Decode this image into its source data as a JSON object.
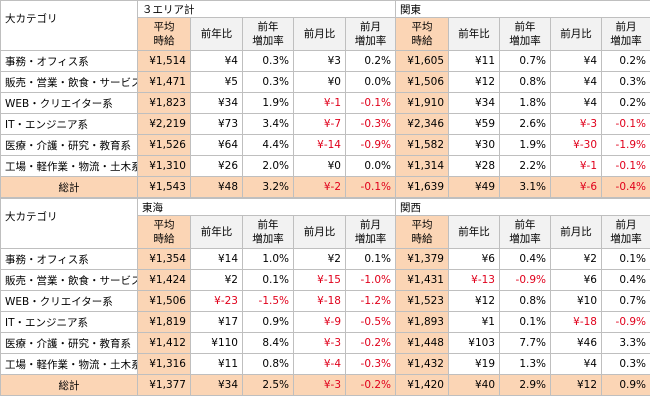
{
  "blocks": [
    {
      "category_header": "大カテゴリ",
      "regions": [
        "３エリア計",
        "関東"
      ],
      "columns": [
        "平均\n時給",
        "前年比",
        "前年\n増加率",
        "前月比",
        "前月\n増加率"
      ],
      "rows": [
        {
          "category": "事務・オフィス系",
          "cells": [
            [
              "¥1,514",
              "¥4",
              "0.3%",
              "¥3",
              "0.2%"
            ],
            [
              "¥1,605",
              "¥11",
              "0.7%",
              "¥4",
              "0.2%"
            ]
          ]
        },
        {
          "category": "販売・営業・飲食・サービス系",
          "cells": [
            [
              "¥1,471",
              "¥5",
              "0.3%",
              "¥0",
              "0.0%"
            ],
            [
              "¥1,506",
              "¥12",
              "0.8%",
              "¥4",
              "0.3%"
            ]
          ]
        },
        {
          "category": "WEB・クリエイター系",
          "cells": [
            [
              "¥1,823",
              "¥34",
              "1.9%",
              "¥-1",
              "-0.1%"
            ],
            [
              "¥1,910",
              "¥34",
              "1.8%",
              "¥4",
              "0.2%"
            ]
          ]
        },
        {
          "category": "IT・エンジニア系",
          "cells": [
            [
              "¥2,219",
              "¥73",
              "3.4%",
              "¥-7",
              "-0.3%"
            ],
            [
              "¥2,346",
              "¥59",
              "2.6%",
              "¥-3",
              "-0.1%"
            ]
          ]
        },
        {
          "category": "医療・介護・研究・教育系",
          "cells": [
            [
              "¥1,526",
              "¥64",
              "4.4%",
              "¥-14",
              "-0.9%"
            ],
            [
              "¥1,582",
              "¥30",
              "1.9%",
              "¥-30",
              "-1.9%"
            ]
          ]
        },
        {
          "category": "工場・軽作業・物流・土木系",
          "cells": [
            [
              "¥1,310",
              "¥26",
              "2.0%",
              "¥0",
              "0.0%"
            ],
            [
              "¥1,314",
              "¥28",
              "2.2%",
              "¥-1",
              "-0.1%"
            ]
          ]
        },
        {
          "category": "総計",
          "cells": [
            [
              "¥1,543",
              "¥48",
              "3.2%",
              "¥-2",
              "-0.1%"
            ],
            [
              "¥1,639",
              "¥49",
              "3.1%",
              "¥-6",
              "-0.4%"
            ]
          ]
        }
      ]
    },
    {
      "category_header": "大カテゴリ",
      "regions": [
        "東海",
        "関西"
      ],
      "columns": [
        "平均\n時給",
        "前年比",
        "前年\n増加率",
        "前月比",
        "前月\n増加率"
      ],
      "rows": [
        {
          "category": "事務・オフィス系",
          "cells": [
            [
              "¥1,354",
              "¥14",
              "1.0%",
              "¥2",
              "0.1%"
            ],
            [
              "¥1,379",
              "¥6",
              "0.4%",
              "¥2",
              "0.1%"
            ]
          ]
        },
        {
          "category": "販売・営業・飲食・サービス系",
          "cells": [
            [
              "¥1,424",
              "¥2",
              "0.1%",
              "¥-15",
              "-1.0%"
            ],
            [
              "¥1,431",
              "¥-13",
              "-0.9%",
              "¥6",
              "0.4%"
            ]
          ]
        },
        {
          "category": "WEB・クリエイター系",
          "cells": [
            [
              "¥1,506",
              "¥-23",
              "-1.5%",
              "¥-18",
              "-1.2%"
            ],
            [
              "¥1,523",
              "¥12",
              "0.8%",
              "¥10",
              "0.7%"
            ]
          ]
        },
        {
          "category": "IT・エンジニア系",
          "cells": [
            [
              "¥1,819",
              "¥17",
              "0.9%",
              "¥-9",
              "-0.5%"
            ],
            [
              "¥1,893",
              "¥1",
              "0.1%",
              "¥-18",
              "-0.9%"
            ]
          ]
        },
        {
          "category": "医療・介護・研究・教育系",
          "cells": [
            [
              "¥1,412",
              "¥110",
              "8.4%",
              "¥-3",
              "-0.2%"
            ],
            [
              "¥1,448",
              "¥103",
              "7.7%",
              "¥46",
              "3.3%"
            ]
          ]
        },
        {
          "category": "工場・軽作業・物流・土木系",
          "cells": [
            [
              "¥1,316",
              "¥11",
              "0.8%",
              "¥-4",
              "-0.3%"
            ],
            [
              "¥1,432",
              "¥19",
              "1.3%",
              "¥4",
              "0.3%"
            ]
          ]
        },
        {
          "category": "総計",
          "cells": [
            [
              "¥1,377",
              "¥34",
              "2.5%",
              "¥-3",
              "-0.2%"
            ],
            [
              "¥1,420",
              "¥40",
              "2.9%",
              "¥12",
              "0.9%"
            ]
          ]
        }
      ]
    }
  ]
}
